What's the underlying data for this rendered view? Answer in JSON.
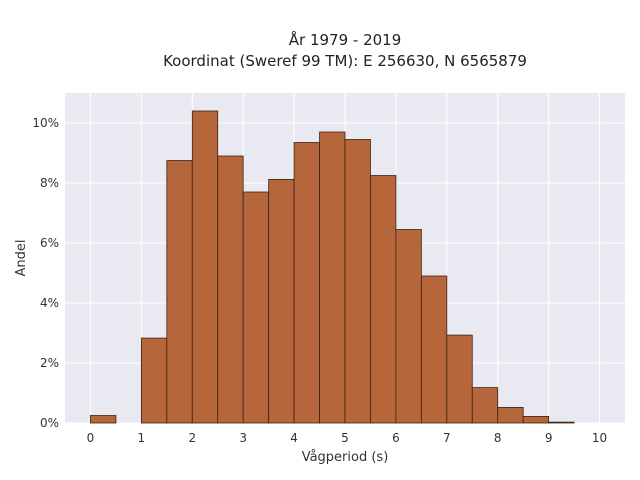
{
  "chart_data": {
    "type": "bar",
    "title_lines": [
      "År 1979 - 2019",
      "Koordinat (Sweref 99 TM): E 256630, N 6565879"
    ],
    "xlabel": "Vågperiod (s)",
    "ylabel": "Andel",
    "xlim": [
      -0.5,
      10.5
    ],
    "ylim": [
      0,
      0.11
    ],
    "x_ticks": [
      0,
      1,
      2,
      3,
      4,
      5,
      6,
      7,
      8,
      9,
      10
    ],
    "x_tick_labels": [
      "0",
      "1",
      "2",
      "3",
      "4",
      "5",
      "6",
      "7",
      "8",
      "9",
      "10"
    ],
    "y_ticks": [
      0,
      0.02,
      0.04,
      0.06,
      0.08,
      0.1
    ],
    "y_tick_labels": [
      "0%",
      "2%",
      "4%",
      "6%",
      "8%",
      "10%"
    ],
    "bin_width": 0.5,
    "bins": [
      {
        "x0": 0.0,
        "value": 0.0025
      },
      {
        "x0": 1.0,
        "value": 0.0283
      },
      {
        "x0": 1.5,
        "value": 0.0875
      },
      {
        "x0": 2.0,
        "value": 0.104
      },
      {
        "x0": 2.5,
        "value": 0.089
      },
      {
        "x0": 3.0,
        "value": 0.077
      },
      {
        "x0": 3.5,
        "value": 0.0812
      },
      {
        "x0": 4.0,
        "value": 0.0935
      },
      {
        "x0": 4.5,
        "value": 0.097
      },
      {
        "x0": 5.0,
        "value": 0.0945
      },
      {
        "x0": 5.5,
        "value": 0.0825
      },
      {
        "x0": 6.0,
        "value": 0.0645
      },
      {
        "x0": 6.5,
        "value": 0.049
      },
      {
        "x0": 7.0,
        "value": 0.0293
      },
      {
        "x0": 7.5,
        "value": 0.0118
      },
      {
        "x0": 8.0,
        "value": 0.0052
      },
      {
        "x0": 8.5,
        "value": 0.0022
      },
      {
        "x0": 9.0,
        "value": 0.0003
      }
    ],
    "grid": true,
    "colors": {
      "bar_fill": "#b5663a",
      "bar_stroke": "#3d2315",
      "plot_background": "#e9e9f1",
      "grid": "#ffffff"
    }
  }
}
